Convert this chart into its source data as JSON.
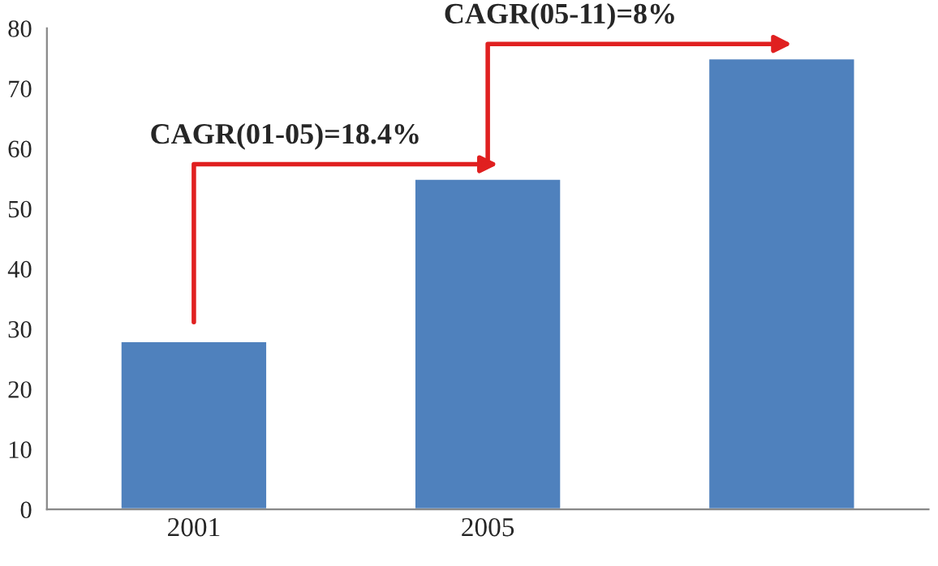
{
  "chart_data": {
    "type": "bar",
    "categories": [
      "2001",
      "2005",
      null
    ],
    "values": [
      28,
      55,
      75
    ],
    "color": "#4f81bd",
    "ylim": [
      0,
      80
    ],
    "yticks": [
      0,
      10,
      20,
      30,
      40,
      50,
      60,
      70,
      80
    ],
    "grid": false,
    "annotations": [
      "CAGR(01-05)=18.4%",
      "CAGR(05-11)=8%"
    ]
  }
}
